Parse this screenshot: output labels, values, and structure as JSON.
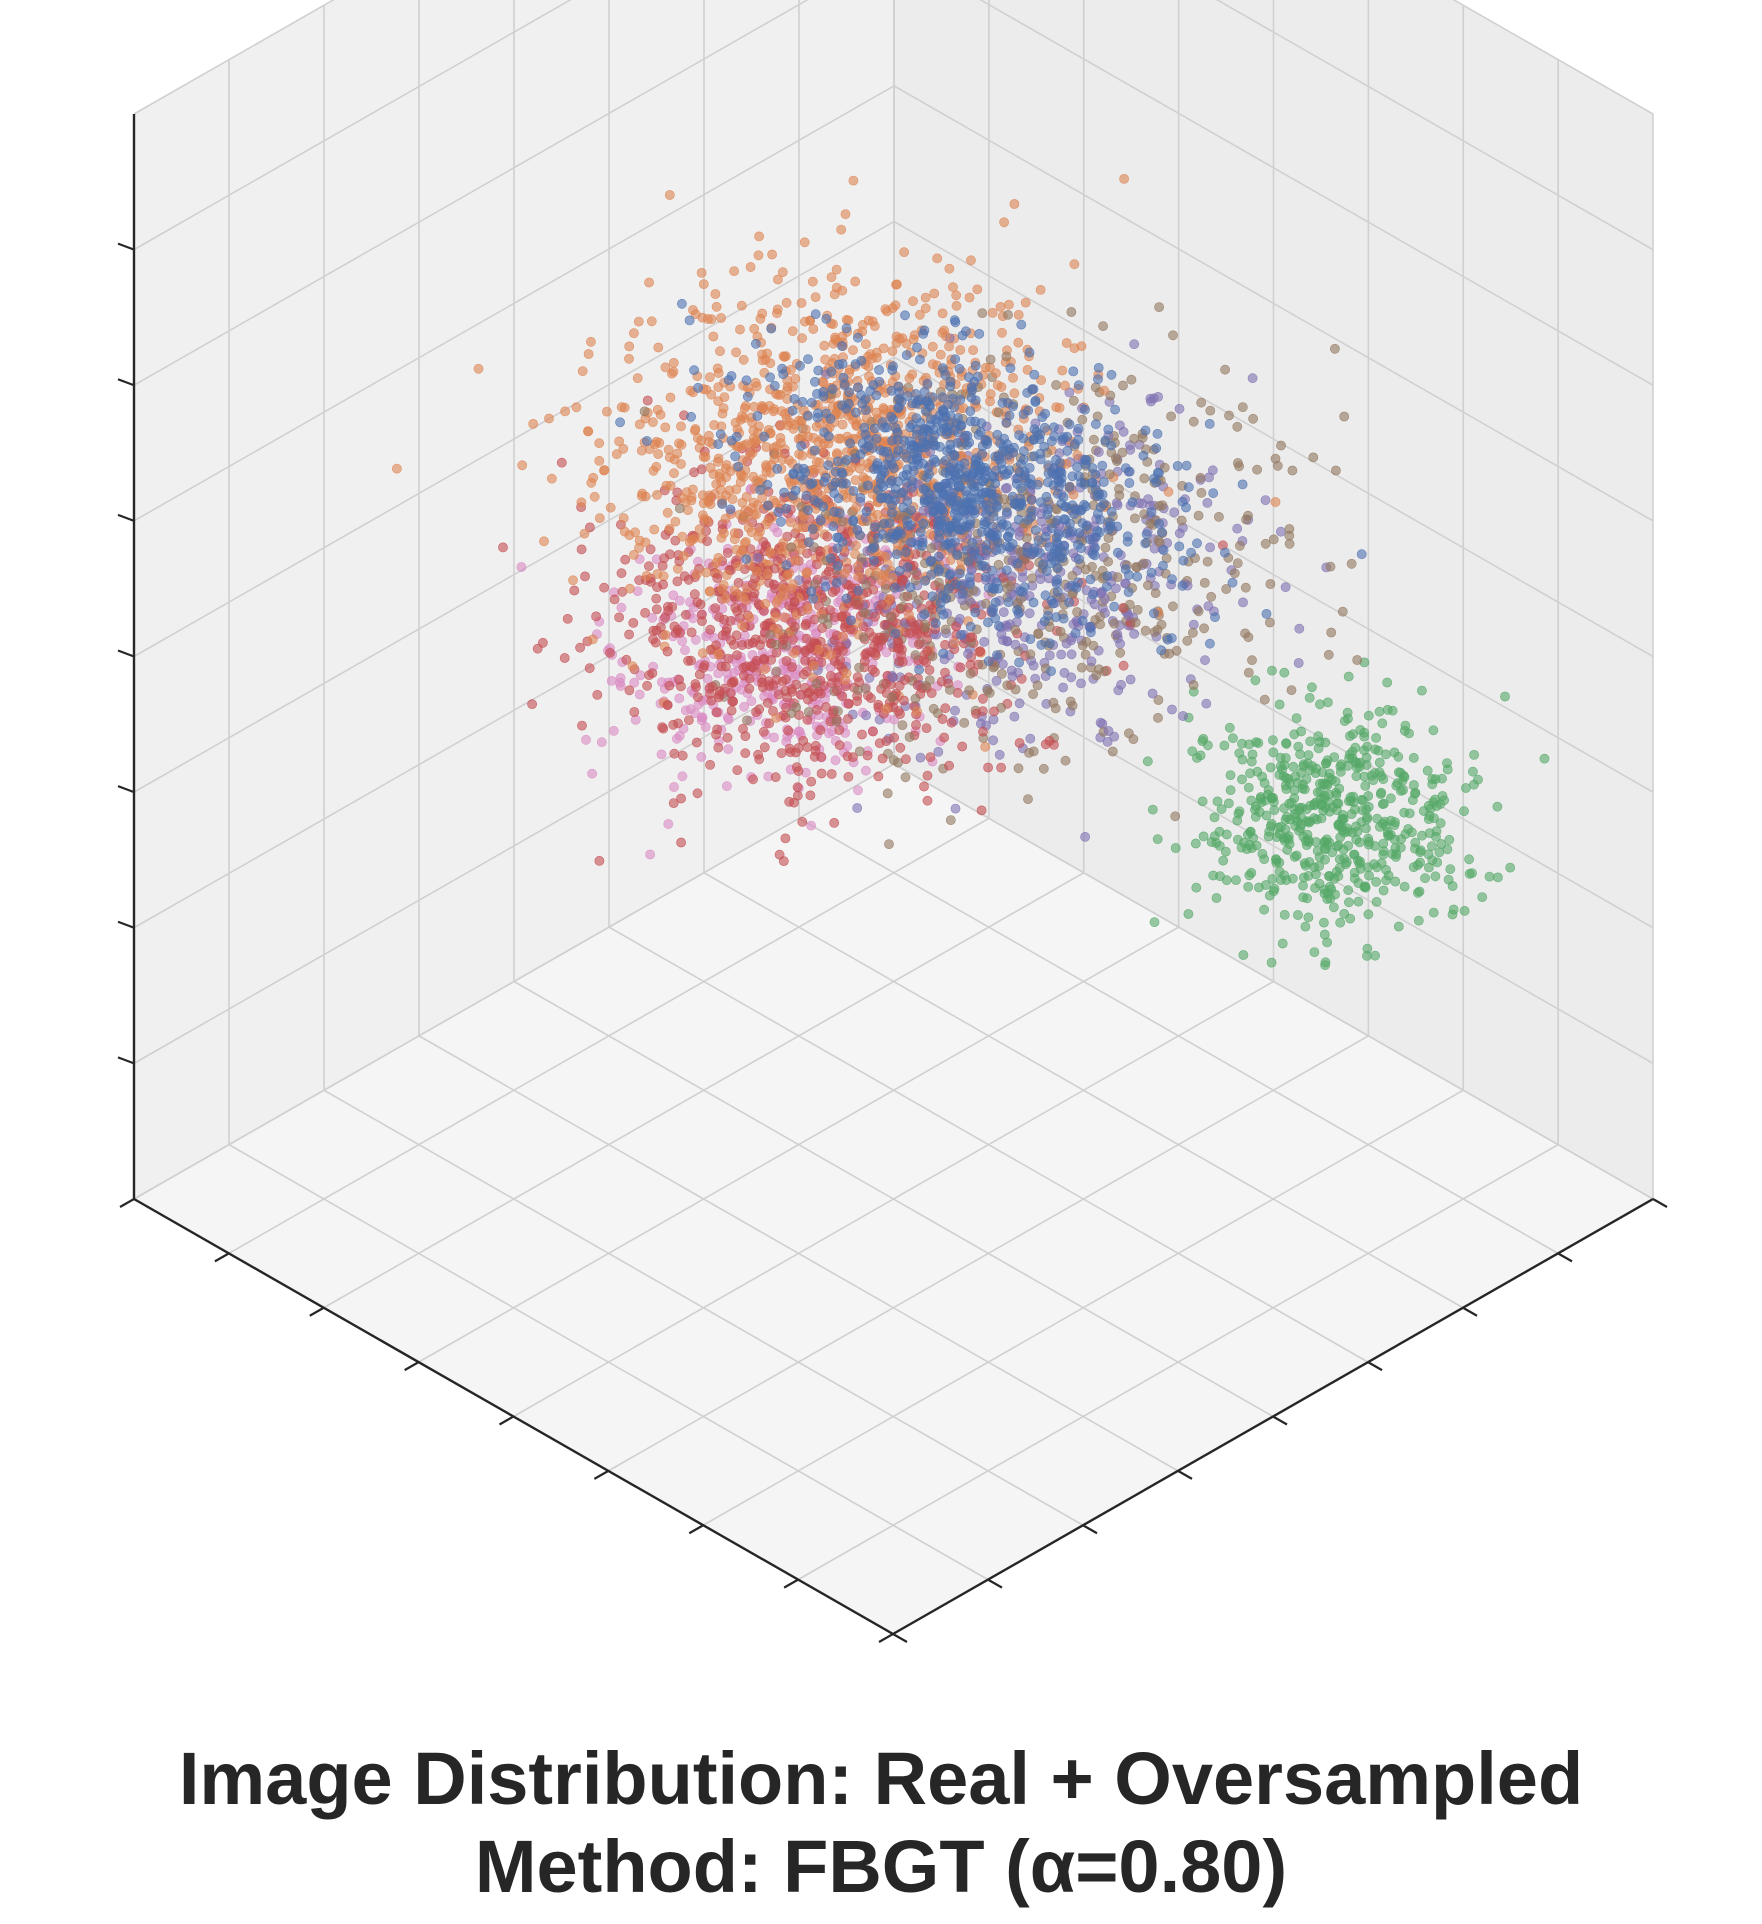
{
  "chart_data": {
    "type": "scatter",
    "projection": "3d",
    "title_lines": [
      "Image Distribution: Real + Oversampled",
      "Method: FBGT (α=0.80)"
    ],
    "xlabel": "",
    "ylabel": "",
    "zlabel": "",
    "tick_labels_shown": false,
    "grid": true,
    "legend": "none",
    "marker_alpha": 0.6,
    "clusters": [
      {
        "color": "#4c72b0",
        "center": [
          -1.6,
          -0.8,
          2.2
        ],
        "spread": [
          1.6,
          1.0,
          0.5
        ],
        "count": 900
      },
      {
        "color": "#dd8452",
        "center": [
          0.8,
          0.2,
          1.1
        ],
        "spread": [
          1.4,
          1.6,
          0.8
        ],
        "count": 1100
      },
      {
        "color": "#c44e52",
        "center": [
          0.4,
          -0.4,
          0.2
        ],
        "spread": [
          1.4,
          1.4,
          0.7
        ],
        "count": 800
      },
      {
        "color": "#55a868",
        "center": [
          -1.8,
          2.8,
          -1.6
        ],
        "spread": [
          0.9,
          0.9,
          0.5
        ],
        "count": 550
      },
      {
        "color": "#da8bc3",
        "center": [
          1.8,
          0.6,
          -0.9
        ],
        "spread": [
          0.9,
          1.2,
          0.6
        ],
        "count": 450
      },
      {
        "color": "#8172b3",
        "center": [
          -0.2,
          1.2,
          0.2
        ],
        "spread": [
          1.2,
          1.5,
          0.8
        ],
        "count": 450
      },
      {
        "color": "#937860",
        "center": [
          -0.6,
          0.8,
          0.6
        ],
        "spread": [
          1.5,
          1.8,
          1.0
        ],
        "count": 500
      }
    ]
  }
}
